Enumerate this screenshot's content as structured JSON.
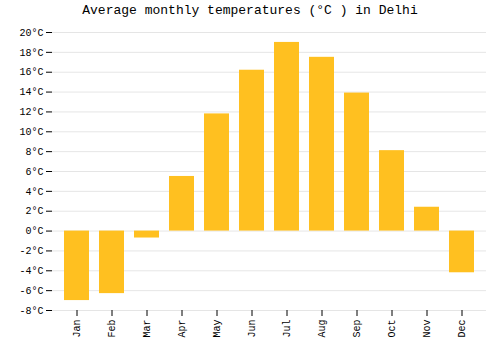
{
  "chart_data": {
    "type": "bar",
    "title": "Average monthly temperatures (°C ) in Delhi",
    "categories": [
      "Jan",
      "Feb",
      "Mar",
      "Apr",
      "May",
      "Jun",
      "Jul",
      "Aug",
      "Sep",
      "Oct",
      "Nov",
      "Dec"
    ],
    "values": [
      -7.0,
      -6.3,
      -0.7,
      5.5,
      11.8,
      16.2,
      19.0,
      17.5,
      13.9,
      8.1,
      2.4,
      -4.2
    ],
    "color": "#FFC020",
    "ylim": [
      -8,
      20
    ],
    "yticks": [
      {
        "value": -8,
        "label": "-8°C"
      },
      {
        "value": -6,
        "label": "-6°C"
      },
      {
        "value": -4,
        "label": "-4°C"
      },
      {
        "value": -2,
        "label": "-2°C"
      },
      {
        "value": 0,
        "label": "0°C"
      },
      {
        "value": 2,
        "label": "2°C"
      },
      {
        "value": 4,
        "label": "4°C"
      },
      {
        "value": 6,
        "label": "6°C"
      },
      {
        "value": 8,
        "label": "8°C"
      },
      {
        "value": 10,
        "label": "10°C"
      },
      {
        "value": 12,
        "label": "12°C"
      },
      {
        "value": 14,
        "label": "14°C"
      },
      {
        "value": 16,
        "label": "16°C"
      },
      {
        "value": 18,
        "label": "18°C"
      },
      {
        "value": 20,
        "label": "20°C"
      }
    ],
    "grid": true
  }
}
